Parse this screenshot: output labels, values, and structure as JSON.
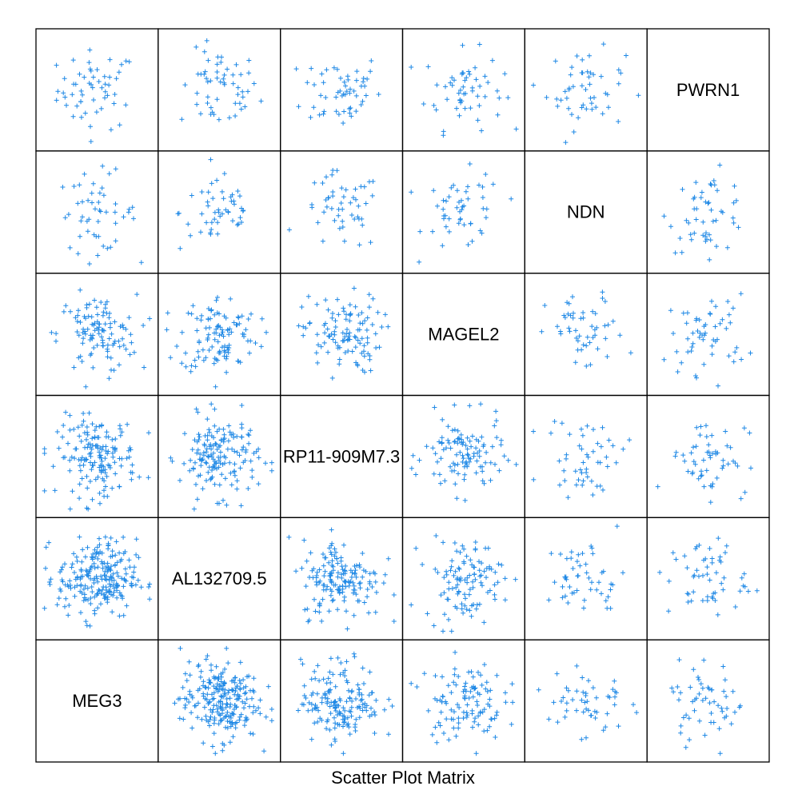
{
  "chart_data": {
    "type": "scatter",
    "subtype": "scatter-plot-matrix",
    "xlabel": "Scatter Plot Matrix",
    "variables": [
      "MEG3",
      "AL132709.5",
      "RP11-909M7.3",
      "MAGEL2",
      "NDN",
      "PWRN1"
    ],
    "marker": "+",
    "marker_color": "#1e88e5",
    "diagonal_shows": "variable name",
    "layout": "lower-left to upper-right diagonal",
    "approx_points_per_panel": {
      "MEG3": 230,
      "AL132709.5": 230,
      "RP11-909M7.3": 160,
      "MAGEL2": 110,
      "NDN": 50,
      "PWRN1": 55
    },
    "value_range": [
      0,
      1
    ]
  },
  "colors": {
    "marker": "#1e88e5",
    "border": "#000000",
    "background": "#ffffff"
  }
}
